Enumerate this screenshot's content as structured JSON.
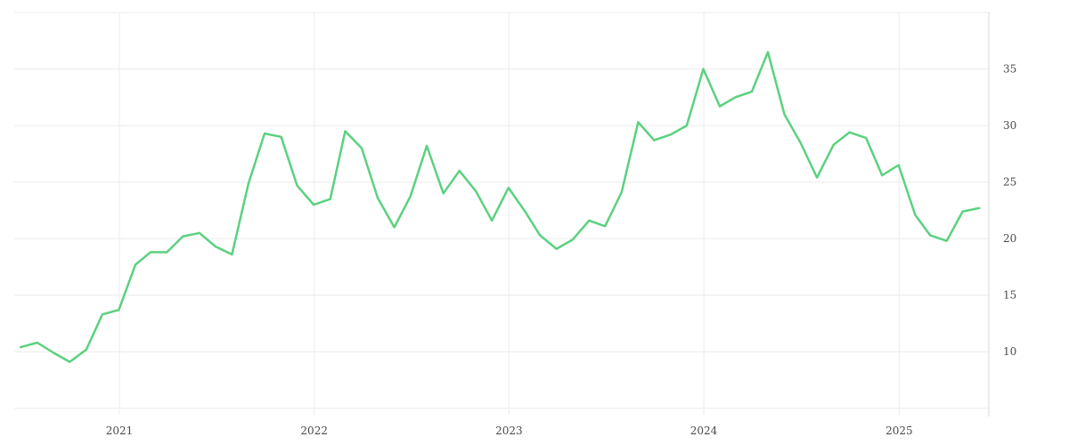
{
  "chart_data": {
    "type": "line",
    "title": "",
    "xlabel": "",
    "ylabel": "",
    "x_axis": {
      "type": "date",
      "range": [
        "2020-06-18",
        "2025-06-18"
      ],
      "ticks": [
        {
          "date": "2021-01-01",
          "label": "2021"
        },
        {
          "date": "2022-01-01",
          "label": "2022"
        },
        {
          "date": "2023-01-01",
          "label": "2023"
        },
        {
          "date": "2024-01-01",
          "label": "2024"
        },
        {
          "date": "2025-01-01",
          "label": "2025"
        }
      ]
    },
    "y_axis": {
      "position": "right",
      "range": [
        4.9,
        40
      ],
      "ticks": [
        10,
        15,
        20,
        25,
        30,
        35
      ],
      "grid": [
        5,
        10,
        15,
        20,
        25,
        30,
        35,
        40
      ]
    },
    "grid": true,
    "legend": "none",
    "series": [
      {
        "color": "#5bd17f",
        "x": [
          "2020-06-30",
          "2020-07-31",
          "2020-08-31",
          "2020-09-30",
          "2020-10-31",
          "2020-11-30",
          "2020-12-31",
          "2021-01-31",
          "2021-02-28",
          "2021-03-31",
          "2021-04-30",
          "2021-05-31",
          "2021-06-30",
          "2021-07-31",
          "2021-08-31",
          "2021-09-30",
          "2021-10-31",
          "2021-11-30",
          "2021-12-31",
          "2022-01-31",
          "2022-02-28",
          "2022-03-31",
          "2022-04-30",
          "2022-05-31",
          "2022-06-30",
          "2022-07-31",
          "2022-08-31",
          "2022-09-30",
          "2022-10-31",
          "2022-11-30",
          "2022-12-31",
          "2023-01-31",
          "2023-02-28",
          "2023-03-31",
          "2023-04-30",
          "2023-05-31",
          "2023-06-30",
          "2023-07-31",
          "2023-08-31",
          "2023-09-30",
          "2023-10-31",
          "2023-11-30",
          "2023-12-31",
          "2024-01-31",
          "2024-02-29",
          "2024-03-31",
          "2024-04-30",
          "2024-05-31",
          "2024-06-30",
          "2024-07-31",
          "2024-08-31",
          "2024-09-30",
          "2024-10-31",
          "2024-11-30",
          "2024-12-31",
          "2025-01-31",
          "2025-02-28",
          "2025-03-31",
          "2025-04-30",
          "2025-05-31"
        ],
        "values": [
          10.4,
          10.8,
          9.9,
          9.1,
          10.2,
          13.3,
          13.7,
          17.7,
          18.8,
          18.8,
          20.2,
          20.5,
          19.3,
          18.6,
          24.9,
          29.3,
          29.0,
          24.7,
          23.0,
          23.5,
          29.5,
          28.0,
          23.6,
          21.0,
          23.7,
          28.2,
          24.0,
          26.0,
          24.2,
          21.6,
          24.5,
          22.4,
          20.3,
          19.1,
          19.9,
          21.6,
          21.1,
          24.1,
          30.3,
          28.7,
          29.2,
          30.0,
          35.0,
          31.7,
          32.5,
          33.0,
          36.5,
          31.0,
          28.5,
          25.4,
          28.3,
          29.4,
          28.9,
          25.6,
          26.5,
          22.1,
          20.3,
          19.8,
          22.4,
          22.7
        ]
      }
    ]
  }
}
